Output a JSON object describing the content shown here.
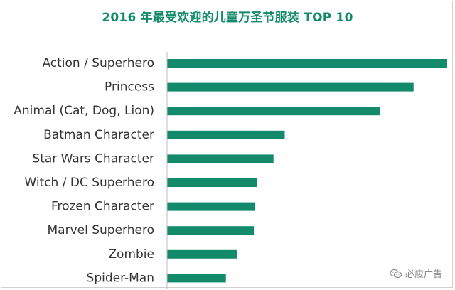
{
  "chart_data": {
    "type": "bar",
    "orientation": "horizontal",
    "title": "2016 年最受欢迎的儿童万圣节服装 TOP 10",
    "xlabel": "",
    "ylabel": "",
    "categories": [
      "Action / Superhero",
      "Princess",
      "Animal (Cat, Dog, Lion)",
      "Batman Character",
      "Star Wars Character",
      "Witch / DC Superhero",
      "Frozen Character",
      "Marvel Superhero",
      "Zombie",
      "Spider-Man"
    ],
    "values": [
      100,
      88,
      76,
      42,
      38,
      32,
      31.5,
      31,
      25,
      21
    ],
    "xlim": [
      0,
      100
    ],
    "grid": false,
    "legend": "none",
    "bar_color": "#138a6b",
    "axis_color": "#bdbdbd",
    "label_color": "#333333",
    "title_color": "#138a6b"
  },
  "watermark": {
    "text": "必应广告",
    "icon": "wechat-icon"
  }
}
